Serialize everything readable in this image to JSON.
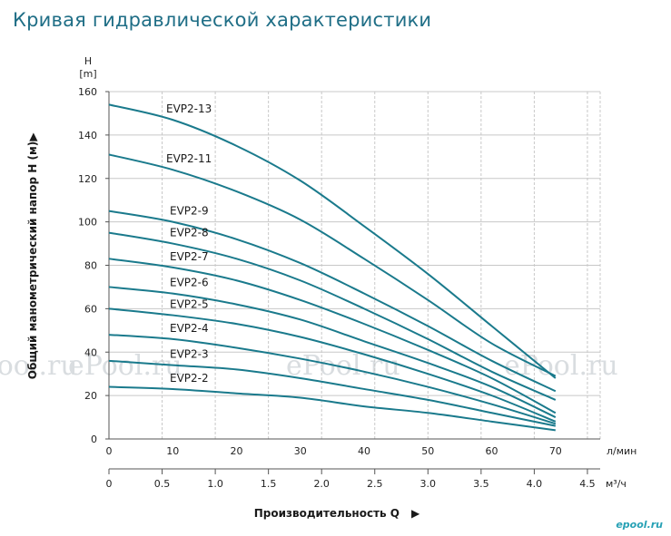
{
  "title": "Кривая гидравлической характеристики",
  "watermark": "ePool.ru",
  "logo": "epool.ru",
  "chart_data": {
    "type": "line",
    "ylabel": "Общий манометрический напор H (м)",
    "ylabel_arrow": "▶",
    "y_unit_top": "H",
    "y_unit": "[m]",
    "xlabel": "Производительность Q",
    "xlabel_arrow": "▶",
    "x_unit": "л/мин",
    "x2_unit": "м³/ч",
    "ylim": [
      0,
      160
    ],
    "xlim": [
      0,
      77
    ],
    "yticks": [
      0,
      20,
      40,
      60,
      80,
      100,
      120,
      140,
      160
    ],
    "xticks": [
      0,
      10,
      20,
      30,
      40,
      50,
      60,
      70
    ],
    "x2ticks": [
      "0",
      "0.5",
      "1.0",
      "1.5",
      "2.0",
      "2.5",
      "3.0",
      "3.5",
      "4.0",
      "4.5"
    ],
    "grid": true,
    "color": "#1a7a8c",
    "series": [
      {
        "name": "EVP2-13",
        "x": [
          0,
          10,
          20,
          30,
          40,
          50,
          60,
          70
        ],
        "y": [
          154,
          147,
          135,
          119,
          98,
          76,
          52,
          28
        ]
      },
      {
        "name": "EVP2-11",
        "x": [
          0,
          10,
          20,
          30,
          40,
          50,
          60,
          70
        ],
        "y": [
          131,
          124,
          114,
          101,
          83,
          64,
          44,
          29
        ]
      },
      {
        "name": "EVP2-9",
        "x": [
          0,
          10,
          20,
          30,
          40,
          50,
          60,
          70
        ],
        "y": [
          105,
          100,
          92,
          81,
          67,
          52,
          36,
          22
        ]
      },
      {
        "name": "EVP2-8",
        "x": [
          0,
          10,
          20,
          30,
          40,
          50,
          60,
          70
        ],
        "y": [
          95,
          90,
          83,
          73,
          60,
          46,
          31,
          18
        ]
      },
      {
        "name": "EVP2-7",
        "x": [
          0,
          10,
          20,
          30,
          40,
          50,
          60,
          70
        ],
        "y": [
          83,
          79,
          73,
          64,
          53,
          41,
          28,
          12
        ]
      },
      {
        "name": "EVP2-6",
        "x": [
          0,
          10,
          20,
          30,
          40,
          50,
          60,
          70
        ],
        "y": [
          70,
          67,
          62,
          55,
          45,
          35,
          24,
          10
        ]
      },
      {
        "name": "EVP2-5",
        "x": [
          0,
          10,
          20,
          30,
          40,
          50,
          60,
          70
        ],
        "y": [
          60,
          57,
          53,
          47,
          39,
          30,
          20,
          8
        ]
      },
      {
        "name": "EVP2-4",
        "x": [
          0,
          10,
          20,
          30,
          40,
          50,
          60,
          70
        ],
        "y": [
          48,
          46,
          42,
          37,
          31,
          24,
          16,
          7
        ]
      },
      {
        "name": "EVP2-3",
        "x": [
          0,
          10,
          20,
          30,
          40,
          50,
          60,
          70
        ],
        "y": [
          36,
          34,
          32,
          28,
          23,
          18,
          12,
          6
        ]
      },
      {
        "name": "EVP2-2",
        "x": [
          0,
          10,
          20,
          30,
          40,
          50,
          60,
          70
        ],
        "y": [
          24,
          23,
          21,
          19,
          15,
          12,
          8,
          4
        ]
      }
    ]
  }
}
